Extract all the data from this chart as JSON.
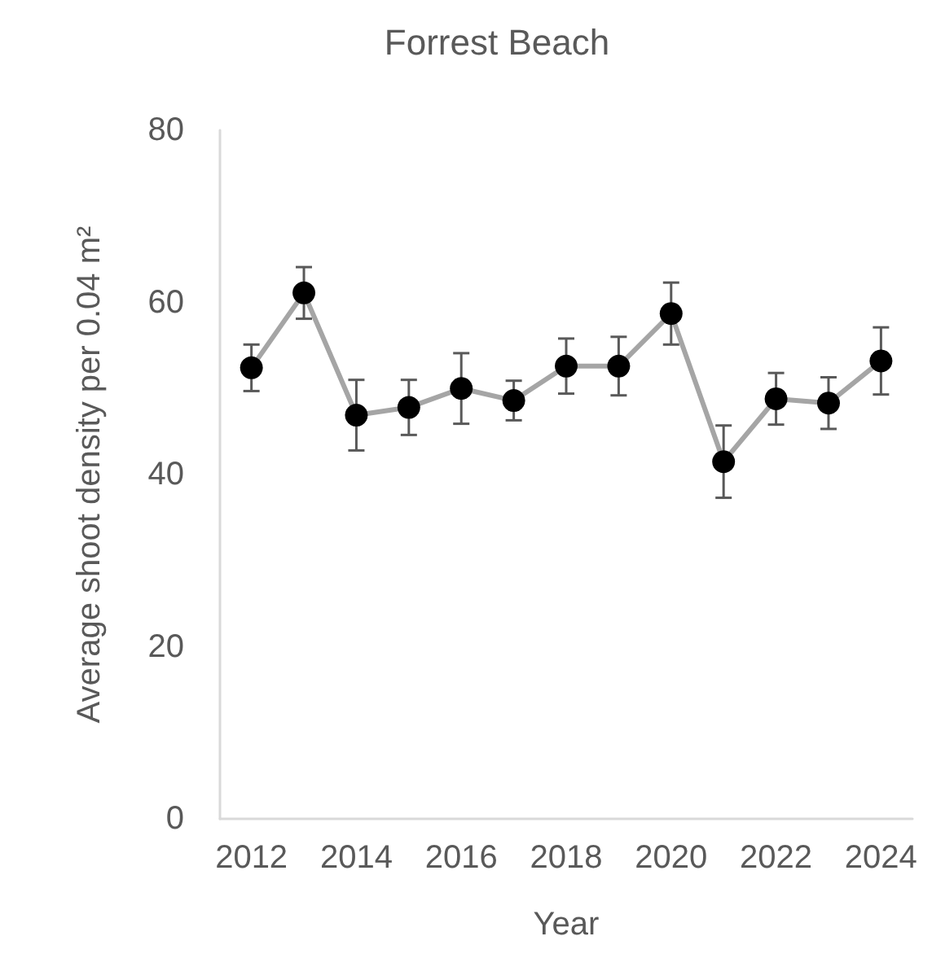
{
  "chart_data": {
    "type": "line",
    "title": "Forrest Beach",
    "xlabel": "Year",
    "ylabel": "Average shoot density per 0.04 m²",
    "x": [
      2012,
      2013,
      2014,
      2015,
      2016,
      2017,
      2018,
      2019,
      2020,
      2021,
      2022,
      2023,
      2024
    ],
    "series": [
      {
        "color": "#a5a5a5",
        "colors": [
          "#000000",
          "#000000",
          "#000000",
          "#000000",
          "#000000",
          "#000000",
          "#000000",
          "#000000",
          "#000000",
          "#000000",
          "#000000",
          "#000000",
          "#000000"
        ],
        "values": [
          52.4,
          61.1,
          46.9,
          47.8,
          50.0,
          48.6,
          52.6,
          52.6,
          58.7,
          41.5,
          48.8,
          48.3,
          53.2
        ],
        "errors": [
          2.7,
          3.0,
          4.1,
          3.2,
          4.1,
          2.3,
          3.2,
          3.4,
          3.6,
          4.2,
          3.0,
          3.0,
          3.9
        ]
      }
    ],
    "xlim": [
      2011.4,
      2024.6
    ],
    "xticks": [
      2012,
      2014,
      2016,
      2018,
      2020,
      2022,
      2024
    ],
    "ylim": [
      0,
      80
    ],
    "yticks": [
      0,
      20,
      40,
      60,
      80
    ],
    "grid": false,
    "legend": false,
    "marker": "circle",
    "line_style": "solid"
  }
}
